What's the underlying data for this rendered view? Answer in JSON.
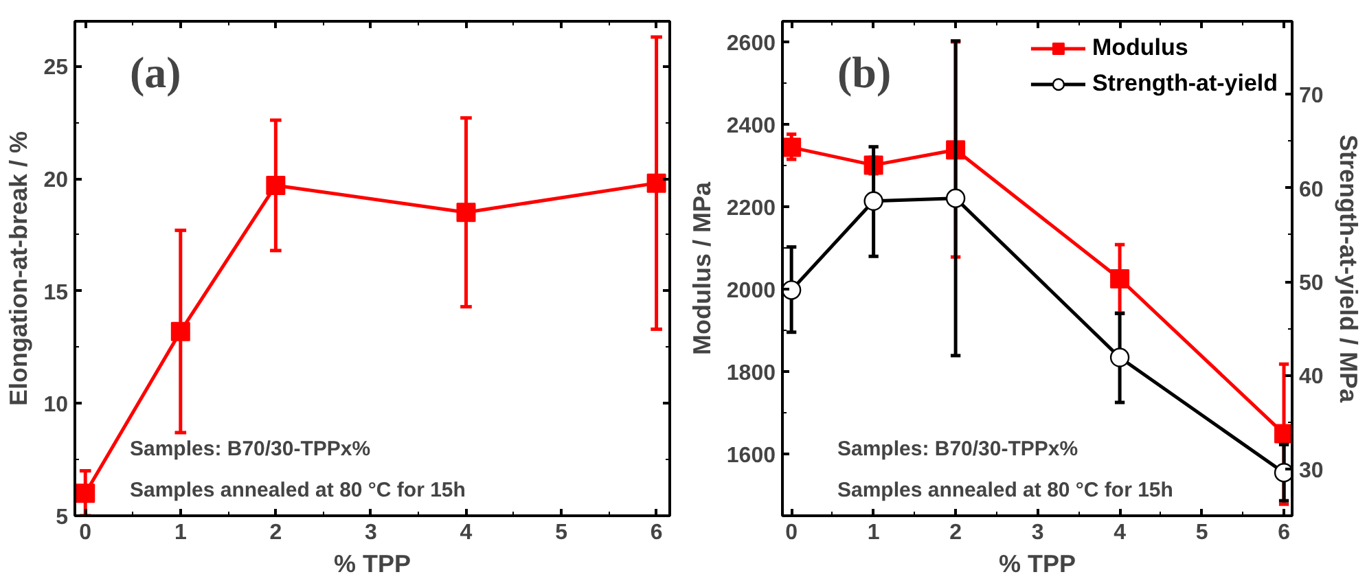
{
  "chart_data": [
    {
      "type": "line",
      "xlabel": "% TPP",
      "ylabel": "Elongation-at-break / %",
      "x": [
        0,
        1,
        2,
        4,
        6
      ],
      "xlim": [
        -0.11,
        6.14
      ],
      "xticks": [
        0,
        1,
        2,
        3,
        4,
        5,
        6
      ],
      "ylim": [
        5,
        27
      ],
      "yticks": [
        5,
        10,
        15,
        20,
        25
      ],
      "grid": false,
      "legend": false,
      "marker": "square",
      "line_style": "solid",
      "annotations": [
        "(a)",
        "Samples: B70/30-TPPx%",
        "Samples annealed at 80 °C for 15h"
      ],
      "series": [
        {
          "color": "#ff0000",
          "values": [
            6.0,
            13.2,
            19.7,
            18.5,
            19.8
          ],
          "errors": [
            [
              5.0,
              7.0
            ],
            [
              8.7,
              17.7
            ],
            [
              16.8,
              22.6
            ],
            [
              14.3,
              22.7
            ],
            [
              13.3,
              26.3
            ]
          ]
        }
      ]
    },
    {
      "type": "line",
      "xlabel": "% TPP",
      "ylabel": "Modulus / MPa",
      "y2label": "Strength-at-yield / MPa",
      "x": [
        0,
        1,
        2,
        4,
        6
      ],
      "xlim": [
        -0.11,
        6.1
      ],
      "xticks": [
        0,
        1,
        2,
        3,
        4,
        5,
        6
      ],
      "ylim": [
        1450,
        2650
      ],
      "yticks": [
        1600,
        1800,
        2000,
        2200,
        2400,
        2600
      ],
      "y2lim": [
        25,
        77.8
      ],
      "y2ticks": [
        30,
        40,
        50,
        60,
        70
      ],
      "grid": false,
      "legend": "top right",
      "line_style": "solid",
      "annotations": [
        "(b)",
        "Samples: B70/30-TPPx%",
        "Samples annealed at 80 °C for 15h"
      ],
      "series": [
        {
          "name": "Modulus",
          "color": "#ff0000",
          "marker": "square",
          "values": [
            2344,
            2301,
            2338,
            2025,
            1649
          ],
          "errors": [
            [
              2315,
              2376
            ],
            [
              2280,
              2320
            ],
            [
              2078,
              2600
            ],
            [
              1942,
              2108
            ],
            [
              1478,
              1818
            ]
          ]
        },
        {
          "name": "Strength-at-yield",
          "color": "#000000",
          "marker": "circle",
          "axis": "y2",
          "values": [
            49.1,
            58.6,
            58.9,
            41.9,
            29.6
          ],
          "errors": [
            [
              44.6,
              53.7
            ],
            [
              52.7,
              64.4
            ],
            [
              42.1,
              75.7
            ],
            [
              37.1,
              46.6
            ],
            [
              26.6,
              32.6
            ]
          ]
        }
      ]
    }
  ]
}
